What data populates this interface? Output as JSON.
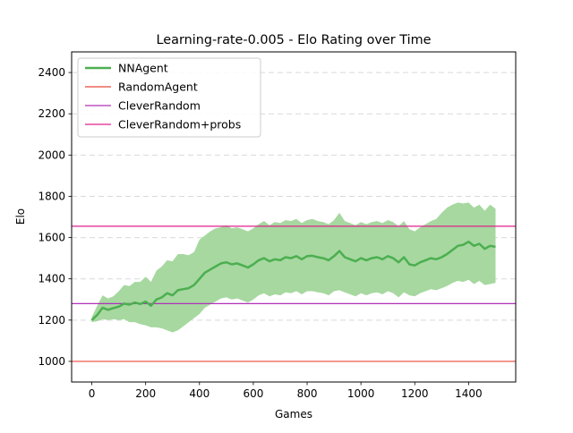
{
  "chart_data": {
    "type": "line",
    "title": "Learning-rate-0.005 - Elo Rating over Time",
    "xlabel": "Games",
    "ylabel": "Elo",
    "xlim": [
      -75,
      1575
    ],
    "ylim": [
      900,
      2500
    ],
    "xticks": [
      0,
      200,
      400,
      600,
      800,
      1000,
      1200,
      1400
    ],
    "yticks": [
      1000,
      1200,
      1400,
      1600,
      1800,
      2000,
      2200,
      2400
    ],
    "grid": "horizontal-dashed",
    "legend": "top-left",
    "series": [
      {
        "name": "NNAgent",
        "kind": "line",
        "color": "#4caf50",
        "band_color": "#a6d8a0",
        "x": [
          0,
          20,
          40,
          60,
          80,
          100,
          120,
          140,
          160,
          180,
          200,
          220,
          240,
          260,
          280,
          300,
          320,
          340,
          360,
          380,
          400,
          420,
          440,
          460,
          480,
          500,
          520,
          540,
          560,
          580,
          600,
          620,
          640,
          660,
          680,
          700,
          720,
          740,
          760,
          780,
          800,
          820,
          840,
          860,
          880,
          900,
          920,
          940,
          960,
          980,
          1000,
          1020,
          1040,
          1060,
          1080,
          1100,
          1120,
          1140,
          1160,
          1180,
          1200,
          1220,
          1240,
          1260,
          1280,
          1300,
          1320,
          1340,
          1360,
          1380,
          1400,
          1420,
          1440,
          1460,
          1480,
          1500
        ],
        "values": [
          1200,
          1225,
          1260,
          1250,
          1258,
          1265,
          1280,
          1275,
          1285,
          1278,
          1290,
          1270,
          1300,
          1310,
          1330,
          1320,
          1345,
          1350,
          1355,
          1370,
          1400,
          1430,
          1445,
          1460,
          1475,
          1480,
          1470,
          1475,
          1465,
          1455,
          1470,
          1490,
          1500,
          1485,
          1495,
          1490,
          1505,
          1500,
          1510,
          1495,
          1510,
          1512,
          1505,
          1500,
          1490,
          1510,
          1535,
          1505,
          1495,
          1485,
          1500,
          1490,
          1500,
          1505,
          1495,
          1510,
          1500,
          1480,
          1505,
          1470,
          1465,
          1480,
          1490,
          1500,
          1495,
          1505,
          1520,
          1540,
          1560,
          1565,
          1580,
          1560,
          1570,
          1545,
          1560,
          1555
        ],
        "lower": [
          1190,
          1195,
          1205,
          1200,
          1205,
          1200,
          1205,
          1190,
          1190,
          1180,
          1175,
          1165,
          1165,
          1160,
          1150,
          1140,
          1150,
          1170,
          1190,
          1210,
          1230,
          1260,
          1275,
          1290,
          1305,
          1310,
          1300,
          1305,
          1295,
          1285,
          1300,
          1320,
          1330,
          1315,
          1325,
          1320,
          1335,
          1330,
          1340,
          1325,
          1340,
          1340,
          1335,
          1330,
          1320,
          1340,
          1345,
          1335,
          1325,
          1315,
          1330,
          1320,
          1330,
          1335,
          1325,
          1340,
          1330,
          1310,
          1335,
          1320,
          1315,
          1330,
          1340,
          1350,
          1345,
          1355,
          1365,
          1380,
          1390,
          1385,
          1395,
          1375,
          1390,
          1370,
          1375,
          1380
        ],
        "upper": [
          1215,
          1270,
          1320,
          1305,
          1315,
          1340,
          1370,
          1365,
          1385,
          1385,
          1410,
          1385,
          1440,
          1460,
          1490,
          1485,
          1520,
          1520,
          1515,
          1530,
          1590,
          1610,
          1630,
          1645,
          1650,
          1660,
          1645,
          1650,
          1640,
          1630,
          1645,
          1665,
          1680,
          1660,
          1675,
          1670,
          1685,
          1680,
          1690,
          1670,
          1685,
          1690,
          1680,
          1675,
          1665,
          1685,
          1720,
          1680,
          1670,
          1660,
          1675,
          1665,
          1675,
          1680,
          1670,
          1685,
          1675,
          1655,
          1680,
          1640,
          1630,
          1650,
          1665,
          1680,
          1690,
          1720,
          1745,
          1760,
          1770,
          1765,
          1770,
          1745,
          1760,
          1730,
          1760,
          1740
        ]
      },
      {
        "name": "RandomAgent",
        "kind": "hline",
        "color": "#e8493a",
        "y": 1000
      },
      {
        "name": "CleverRandom",
        "kind": "hline",
        "color": "#b030b8",
        "y": 1280
      },
      {
        "name": "CleverRandom+probs",
        "kind": "hline",
        "color": "#e0208c",
        "y": 1655
      }
    ]
  }
}
